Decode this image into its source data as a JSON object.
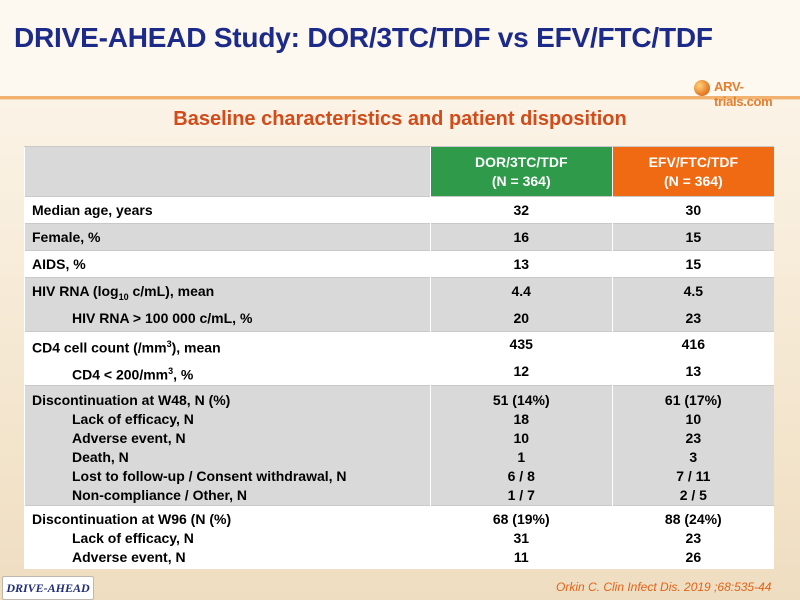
{
  "title": "DRIVE-AHEAD Study: DOR/3TC/TDF vs EFV/FTC/TDF",
  "logo_text": "ARV-trials.com",
  "subtitle": "Baseline characteristics and patient disposition",
  "table": {
    "headers": {
      "arm1_name": "DOR/3TC/TDF",
      "arm1_n": "(N = 364)",
      "arm2_name": "EFV/FTC/TDF",
      "arm2_n": "(N = 364)"
    },
    "rows": {
      "median_age": {
        "label": "Median age, years",
        "a": "32",
        "b": "30"
      },
      "female": {
        "label": "Female, %",
        "a": "16",
        "b": "15"
      },
      "aids": {
        "label": "AIDS, %",
        "a": "13",
        "b": "15"
      },
      "hiv_rna": {
        "label_pre": "HIV RNA (log",
        "label_sub": "10",
        "label_post": " c/mL), mean",
        "a": "4.4",
        "b": "4.5"
      },
      "hiv_rna_gt": {
        "label": "HIV RNA > 100 000 c/mL, %",
        "a": "20",
        "b": "23"
      },
      "cd4": {
        "label_pre": "CD4 cell count (/mm",
        "label_sup": "3",
        "label_post": "), mean",
        "a": "435",
        "b": "416"
      },
      "cd4_lt": {
        "label_pre": "CD4 < 200/mm",
        "label_sup": "3",
        "label_post": ", %",
        "a": "12",
        "b": "13"
      },
      "disc48": {
        "label": "Discontinuation at W48, N (%)",
        "a": "51 (14%)",
        "b": "61 (17%)"
      },
      "disc48_eff": {
        "label": "Lack of efficacy, N",
        "a": "18",
        "b": "10"
      },
      "disc48_ae": {
        "label": "Adverse event, N",
        "a": "10",
        "b": "23"
      },
      "disc48_death": {
        "label": "Death, N",
        "a": "1",
        "b": "3"
      },
      "disc48_lost": {
        "label": "Lost to follow-up / Consent withdrawal, N",
        "a": "6 / 8",
        "b": "7 / 11"
      },
      "disc48_noncomp": {
        "label": "Non-compliance / Other, N",
        "a": "1 / 7",
        "b": "2 / 5"
      },
      "disc96": {
        "label": "Discontinuation at W96 (N (%)",
        "a": "68 (19%)",
        "b": "88 (24%)"
      },
      "disc96_eff": {
        "label": "Lack of efficacy, N",
        "a": "31",
        "b": "23"
      },
      "disc96_ae": {
        "label": "Adverse event, N",
        "a": "11",
        "b": "26"
      }
    }
  },
  "footer_logo": "DRIVE-AHEAD",
  "citation": "Orkin C. Clin Infect Dis. 2019 ;68:535-44"
}
